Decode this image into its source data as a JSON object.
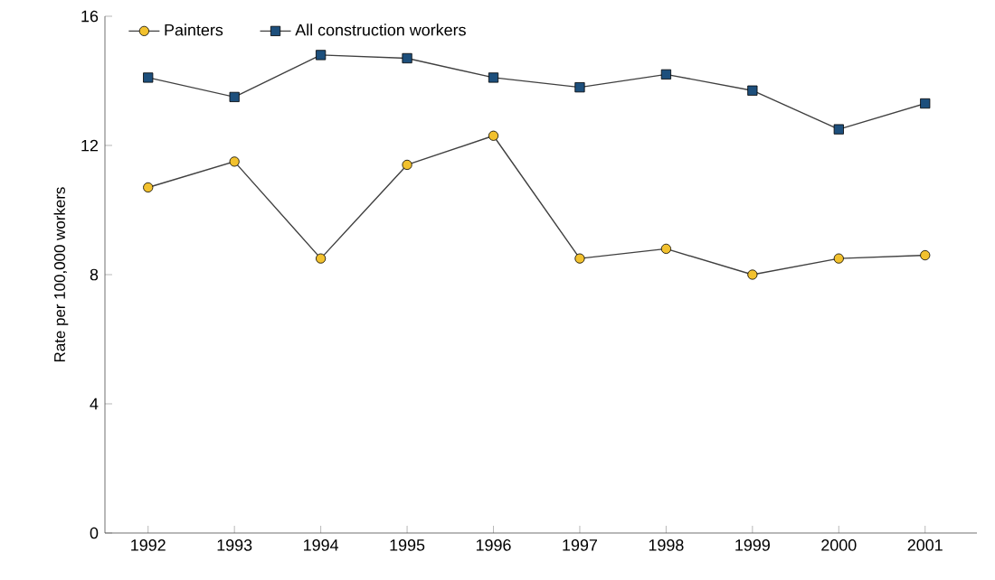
{
  "chart_data": {
    "type": "line",
    "ylabel": "Rate per 100,000 workers",
    "categories": [
      "1992",
      "1993",
      "1994",
      "1995",
      "1996",
      "1997",
      "1998",
      "1999",
      "2000",
      "2001"
    ],
    "series": [
      {
        "name": "Painters",
        "color": "#f2c12e",
        "marker": "circle",
        "values": [
          10.7,
          11.5,
          8.5,
          11.4,
          12.3,
          8.5,
          8.8,
          8.0,
          8.5,
          8.6
        ]
      },
      {
        "name": "All construction workers",
        "color": "#1d4f7c",
        "marker": "square",
        "values": [
          14.1,
          13.5,
          14.8,
          14.7,
          14.1,
          13.8,
          14.2,
          13.7,
          12.5,
          13.3
        ]
      }
    ],
    "ylim": [
      0,
      16
    ],
    "yticks": [
      0,
      4,
      8,
      12,
      16
    ],
    "grid": false,
    "legend": "top",
    "line_style": "solid"
  }
}
